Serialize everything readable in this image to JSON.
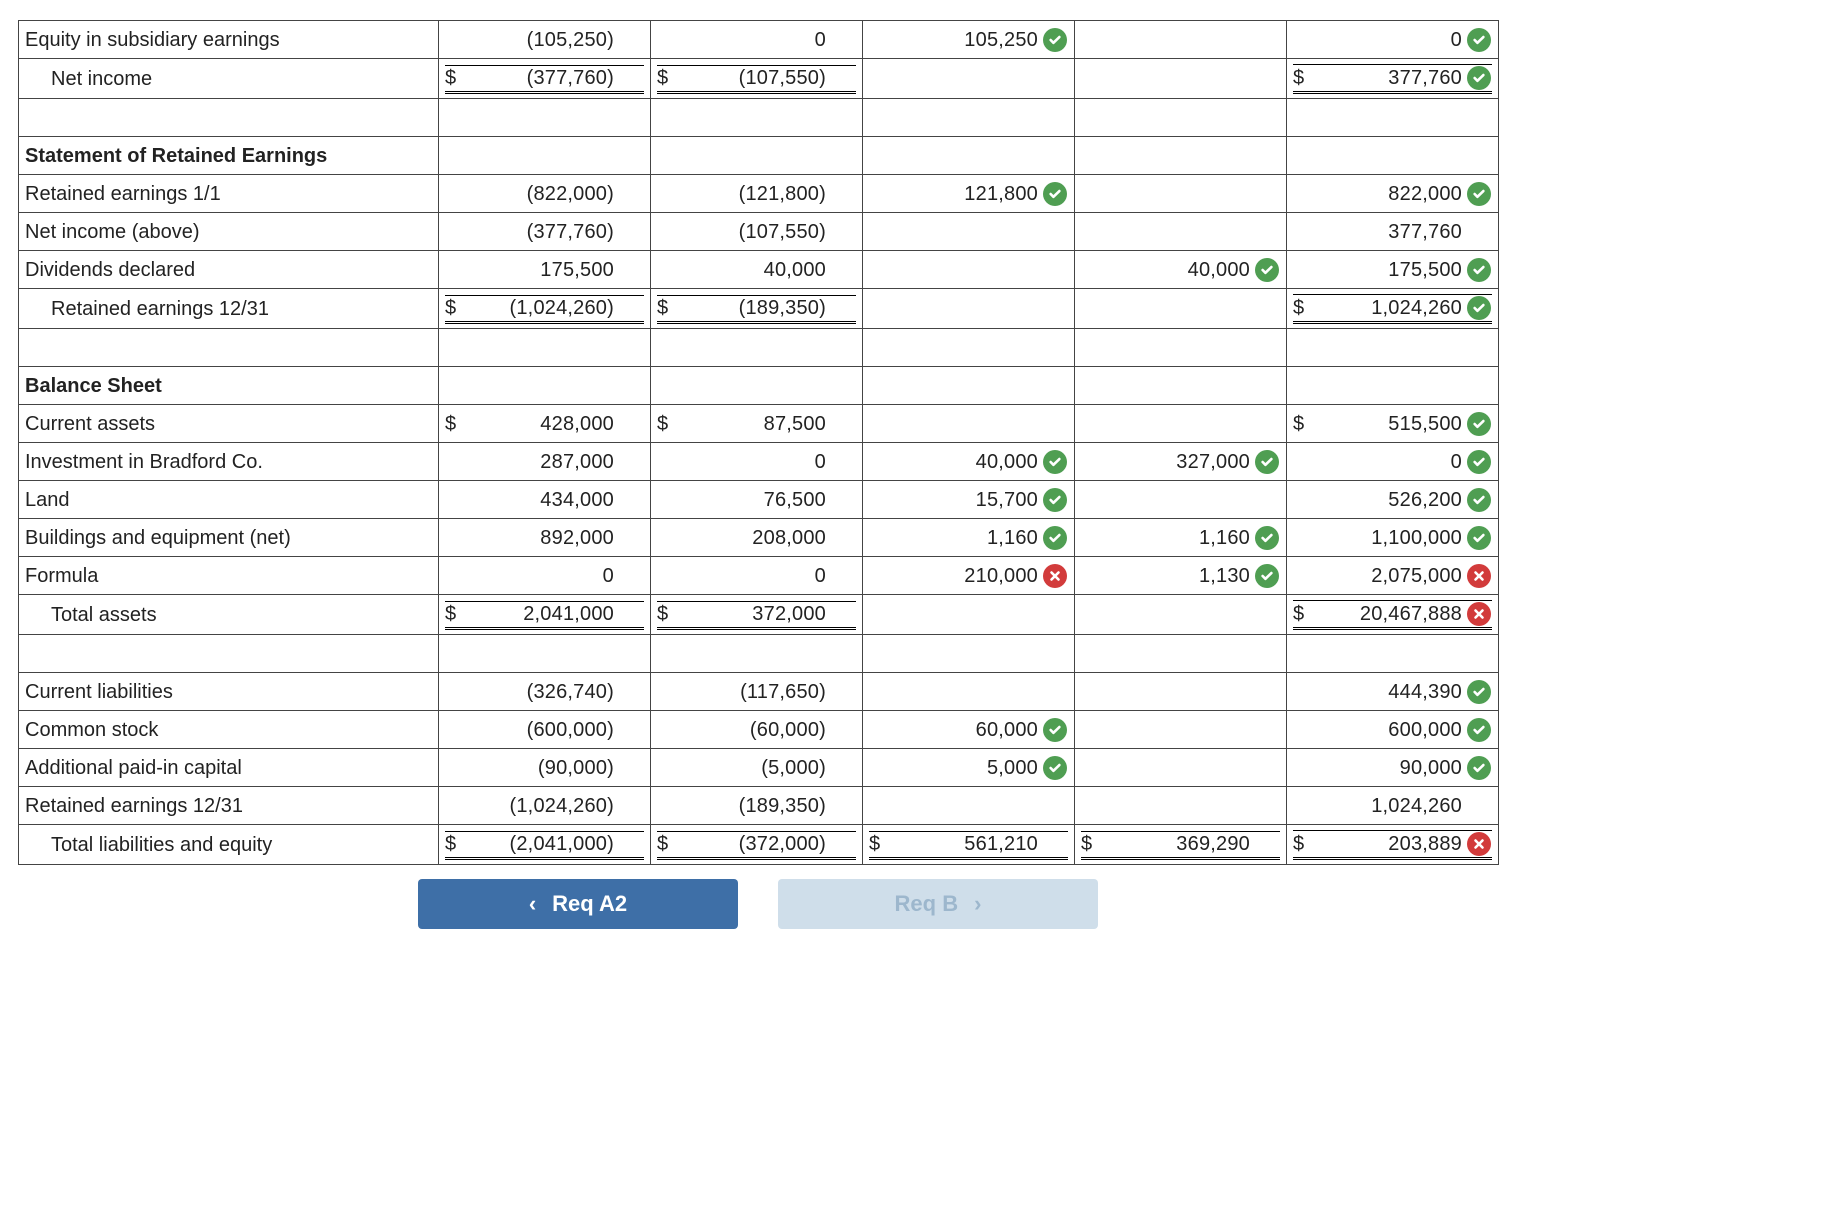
{
  "colors": {
    "ok": "#4f9e52",
    "bad": "#d23b3b",
    "primary_btn": "#3e6fa7",
    "secondary_btn": "#cfdeea",
    "border": "#444444"
  },
  "nav": {
    "prev_label": "Req A2",
    "next_label": "Req B"
  },
  "rows": [
    {
      "id": "equity-sub-earnings",
      "label": "Equity in subsidiary earnings",
      "indent": false,
      "cells": [
        {
          "d": "",
          "v": "(105,250)"
        },
        {
          "d": "",
          "v": "0"
        },
        {
          "d": "",
          "v": "105,250",
          "mark": "ok"
        },
        {
          "d": "",
          "v": ""
        },
        {
          "d": "",
          "v": "0",
          "mark": "ok"
        }
      ]
    },
    {
      "id": "net-income",
      "label": "Net income",
      "indent": true,
      "rule": "bt1 bb3",
      "cells": [
        {
          "d": "$",
          "v": "(377,760)"
        },
        {
          "d": "$",
          "v": "(107,550)"
        },
        {
          "d": "",
          "v": ""
        },
        {
          "d": "",
          "v": ""
        },
        {
          "d": "$",
          "v": "377,760",
          "mark": "ok"
        }
      ]
    },
    {
      "id": "spacer-1",
      "spacer": true
    },
    {
      "id": "hdr-retained",
      "label": "Statement of Retained Earnings",
      "header": true,
      "cells": [
        {
          "v": ""
        },
        {
          "v": ""
        },
        {
          "v": ""
        },
        {
          "v": ""
        },
        {
          "v": ""
        }
      ]
    },
    {
      "id": "re-11",
      "label": "Retained earnings 1/1",
      "cells": [
        {
          "d": "",
          "v": "(822,000)"
        },
        {
          "d": "",
          "v": "(121,800)"
        },
        {
          "d": "",
          "v": "121,800",
          "mark": "ok"
        },
        {
          "d": "",
          "v": ""
        },
        {
          "d": "",
          "v": "822,000",
          "mark": "ok"
        }
      ]
    },
    {
      "id": "ni-above",
      "label": "Net income (above)",
      "cells": [
        {
          "d": "",
          "v": "(377,760)"
        },
        {
          "d": "",
          "v": "(107,550)"
        },
        {
          "d": "",
          "v": ""
        },
        {
          "d": "",
          "v": ""
        },
        {
          "d": "",
          "v": "377,760"
        }
      ]
    },
    {
      "id": "div-decl",
      "label": "Dividends declared",
      "cells": [
        {
          "d": "",
          "v": "175,500"
        },
        {
          "d": "",
          "v": "40,000"
        },
        {
          "d": "",
          "v": ""
        },
        {
          "d": "",
          "v": "40,000",
          "mark": "ok"
        },
        {
          "d": "",
          "v": "175,500",
          "mark": "ok"
        }
      ]
    },
    {
      "id": "re-1231",
      "label": "Retained earnings 12/31",
      "indent": true,
      "rule": "bt1 bb3",
      "cells": [
        {
          "d": "$",
          "v": "(1,024,260)"
        },
        {
          "d": "$",
          "v": "(189,350)"
        },
        {
          "d": "",
          "v": ""
        },
        {
          "d": "",
          "v": ""
        },
        {
          "d": "$",
          "v": "1,024,260",
          "mark": "ok"
        }
      ]
    },
    {
      "id": "spacer-2",
      "spacer": true
    },
    {
      "id": "hdr-bs",
      "label": "Balance Sheet",
      "header": true,
      "cells": [
        {
          "v": ""
        },
        {
          "v": ""
        },
        {
          "v": ""
        },
        {
          "v": ""
        },
        {
          "v": ""
        }
      ]
    },
    {
      "id": "cur-assets",
      "label": "Current assets",
      "cells": [
        {
          "d": "$",
          "v": "428,000"
        },
        {
          "d": "$",
          "v": "87,500"
        },
        {
          "d": "",
          "v": ""
        },
        {
          "d": "",
          "v": ""
        },
        {
          "d": "$",
          "v": "515,500",
          "mark": "ok"
        }
      ]
    },
    {
      "id": "inv-brad",
      "label": "Investment in Bradford Co.",
      "cells": [
        {
          "d": "",
          "v": "287,000"
        },
        {
          "d": "",
          "v": "0"
        },
        {
          "d": "",
          "v": "40,000",
          "mark": "ok"
        },
        {
          "d": "",
          "v": "327,000",
          "mark": "ok"
        },
        {
          "d": "",
          "v": "0",
          "mark": "ok"
        }
      ]
    },
    {
      "id": "land",
      "label": "Land",
      "cells": [
        {
          "d": "",
          "v": "434,000"
        },
        {
          "d": "",
          "v": "76,500"
        },
        {
          "d": "",
          "v": "15,700",
          "mark": "ok"
        },
        {
          "d": "",
          "v": ""
        },
        {
          "d": "",
          "v": "526,200",
          "mark": "ok"
        }
      ]
    },
    {
      "id": "bldg",
      "label": "Buildings and equipment (net)",
      "cells": [
        {
          "d": "",
          "v": "892,000"
        },
        {
          "d": "",
          "v": "208,000"
        },
        {
          "d": "",
          "v": "1,160",
          "mark": "ok"
        },
        {
          "d": "",
          "v": "1,160",
          "mark": "ok"
        },
        {
          "d": "",
          "v": "1,100,000",
          "mark": "ok"
        }
      ]
    },
    {
      "id": "formula",
      "label": "Formula",
      "cells": [
        {
          "d": "",
          "v": "0"
        },
        {
          "d": "",
          "v": "0"
        },
        {
          "d": "",
          "v": "210,000",
          "mark": "bad"
        },
        {
          "d": "",
          "v": "1,130",
          "mark": "ok"
        },
        {
          "d": "",
          "v": "2,075,000",
          "mark": "bad"
        }
      ]
    },
    {
      "id": "tot-assets",
      "label": "Total assets",
      "indent": true,
      "rule": "bt1 bb3",
      "cells": [
        {
          "d": "$",
          "v": "2,041,000"
        },
        {
          "d": "$",
          "v": "372,000"
        },
        {
          "d": "",
          "v": ""
        },
        {
          "d": "",
          "v": ""
        },
        {
          "d": "$",
          "v": "20,467,888",
          "mark": "bad"
        }
      ]
    },
    {
      "id": "spacer-3",
      "spacer": true
    },
    {
      "id": "cur-liab",
      "label": "Current liabilities",
      "cells": [
        {
          "d": "",
          "v": "(326,740)"
        },
        {
          "d": "",
          "v": "(117,650)"
        },
        {
          "d": "",
          "v": ""
        },
        {
          "d": "",
          "v": ""
        },
        {
          "d": "",
          "v": "444,390",
          "mark": "ok"
        }
      ]
    },
    {
      "id": "common-stock",
      "label": "Common stock",
      "cells": [
        {
          "d": "",
          "v": "(600,000)"
        },
        {
          "d": "",
          "v": "(60,000)"
        },
        {
          "d": "",
          "v": "60,000",
          "mark": "ok"
        },
        {
          "d": "",
          "v": ""
        },
        {
          "d": "",
          "v": "600,000",
          "mark": "ok"
        }
      ]
    },
    {
      "id": "apic",
      "label": "Additional paid-in capital",
      "cells": [
        {
          "d": "",
          "v": "(90,000)"
        },
        {
          "d": "",
          "v": "(5,000)"
        },
        {
          "d": "",
          "v": "5,000",
          "mark": "ok"
        },
        {
          "d": "",
          "v": ""
        },
        {
          "d": "",
          "v": "90,000",
          "mark": "ok"
        }
      ]
    },
    {
      "id": "re-1231b",
      "label": "Retained earnings 12/31",
      "cells": [
        {
          "d": "",
          "v": "(1,024,260)"
        },
        {
          "d": "",
          "v": "(189,350)"
        },
        {
          "d": "",
          "v": ""
        },
        {
          "d": "",
          "v": ""
        },
        {
          "d": "",
          "v": "1,024,260"
        }
      ]
    },
    {
      "id": "tot-liab-eq",
      "label": "Total liabilities and equity",
      "indent": true,
      "rule": "bt1 bb3",
      "cells": [
        {
          "d": "$",
          "v": "(2,041,000)"
        },
        {
          "d": "$",
          "v": "(372,000)"
        },
        {
          "d": "$",
          "v": "561,210"
        },
        {
          "d": "$",
          "v": "369,290"
        },
        {
          "d": "$",
          "v": "203,889",
          "mark": "bad"
        }
      ]
    }
  ]
}
